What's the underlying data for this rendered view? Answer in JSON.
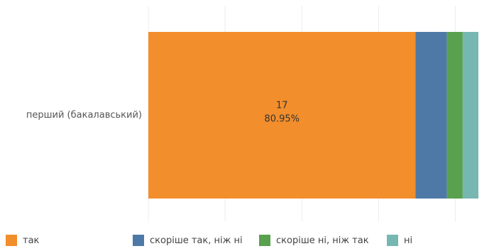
{
  "chart_data": {
    "type": "bar",
    "orientation": "horizontal",
    "stacked": true,
    "categories": [
      "перший (бакалавський)"
    ],
    "series": [
      {
        "name": "так",
        "values": [
          17
        ],
        "percent": [
          80.95
        ],
        "color": "#F28E2B"
      },
      {
        "name": "скоріше так, ніж ні",
        "values": [
          2
        ],
        "percent": [
          9.52
        ],
        "color": "#4E79A7"
      },
      {
        "name": "скоріше ні, ніж так",
        "values": [
          1
        ],
        "percent": [
          4.76
        ],
        "color": "#59A14F"
      },
      {
        "name": "ні",
        "values": [
          1
        ],
        "percent": [
          4.76
        ],
        "color": "#76B7B2"
      }
    ],
    "data_labels": [
      {
        "series": "так",
        "count": "17",
        "percent": "80.95%"
      }
    ],
    "xlim": [
      0,
      21
    ],
    "grid": true,
    "legend_position": "bottom"
  }
}
